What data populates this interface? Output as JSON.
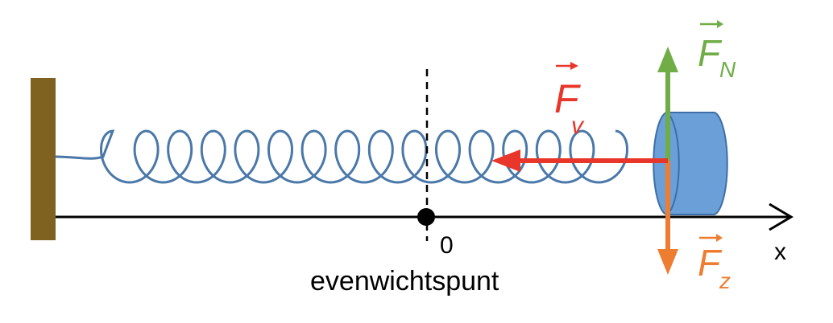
{
  "labels": {
    "origin": "0",
    "equilibrium": "evenwichtspunt",
    "axis": "x"
  },
  "forces": {
    "normal": {
      "symbol": "F",
      "subscript": "N",
      "color": "#70ad47"
    },
    "spring": {
      "symbol": "F",
      "subscript": "v",
      "color": "#e8362a"
    },
    "gravity": {
      "symbol": "F",
      "subscript": "z",
      "color": "#ed7d31"
    }
  },
  "colors": {
    "wall": "#7f6120",
    "spring": "#4a78a8",
    "block_fill": "#6a9fd8",
    "block_stroke": "#3e6ea8",
    "axis": "#000000"
  },
  "icons": {
    "wall": "wall-icon",
    "spring": "spring-coil-icon",
    "block": "cylinder-block-icon"
  }
}
